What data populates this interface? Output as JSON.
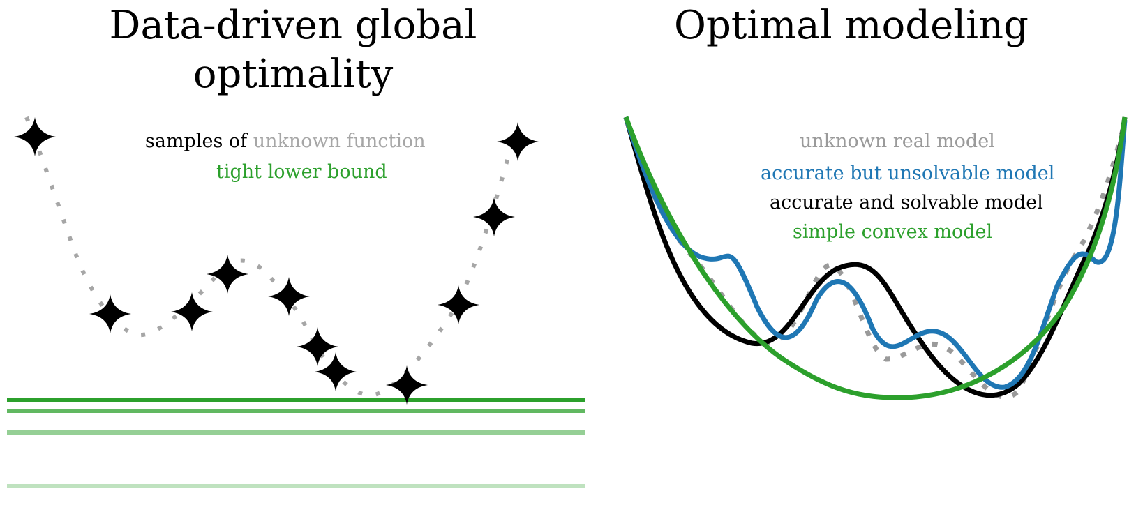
{
  "left_panel": {
    "title": "Data-driven global optimality",
    "legend": {
      "samples_prefix": "samples of",
      "samples_suffix": "unknown function",
      "lower_bound": "tight lower bound"
    },
    "colors": {
      "samples": "#000000",
      "unknown_function": "#a6a6a6",
      "lower_bound": "#2ca02c"
    }
  },
  "right_panel": {
    "title": "Optimal modeling",
    "legend": {
      "real": "unknown real model",
      "unsolvable": "accurate but unsolvable model",
      "solvable": "accurate and solvable model",
      "convex": "simple convex model"
    },
    "colors": {
      "real": "#9a9a9a",
      "unsolvable": "#1f77b4",
      "solvable": "#000000",
      "convex": "#2ca02c"
    }
  }
}
